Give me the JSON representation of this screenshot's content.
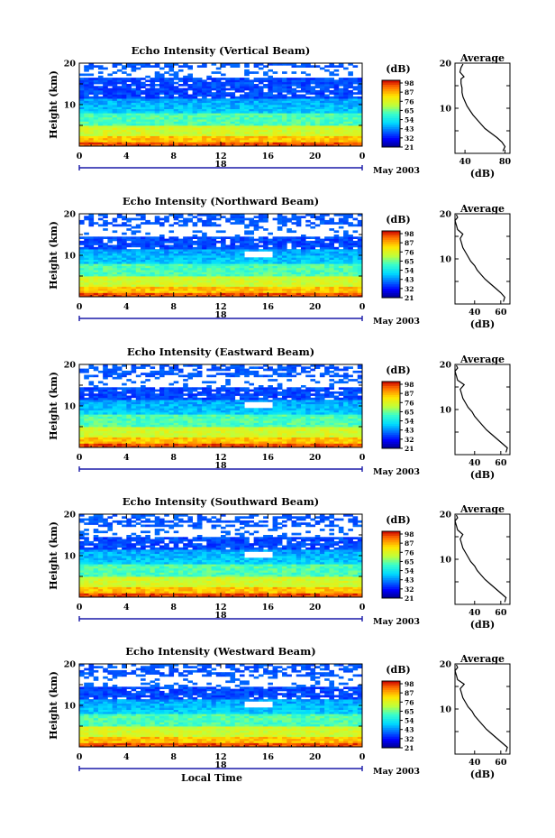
{
  "chart_data": [
    {
      "type": "heatmap",
      "title": "Echo Intensity (Vertical Beam)",
      "ylabel": "Height (km)",
      "ylim": [
        0,
        20
      ],
      "xlim": [
        0,
        24
      ],
      "x_ticks": [
        "0",
        "4",
        "8",
        "12",
        "16",
        "20",
        "0"
      ],
      "date_mark": "18",
      "date_label": "May 2003",
      "colorbar": {
        "title": "(dB)",
        "ticks": [
          "98",
          "87",
          "76",
          "65",
          "54",
          "43",
          "32",
          "21"
        ]
      },
      "profile": {
        "title": "Average",
        "xlabel": "(dB)",
        "x_ticks": [
          "40",
          "80"
        ],
        "y_ticks": [
          "10",
          "20"
        ],
        "x": [
          78,
          80,
          77,
          72,
          66,
          60,
          56,
          52,
          48,
          45,
          42,
          40,
          38,
          37,
          37,
          36,
          36,
          39,
          35,
          36,
          38
        ],
        "y": [
          0.5,
          1.5,
          2.5,
          3.5,
          4.5,
          5.5,
          6.5,
          7.5,
          8.5,
          9.5,
          10.5,
          11.5,
          12.5,
          13.5,
          14.5,
          15.5,
          16.5,
          17.0,
          18.0,
          19.0,
          19.8
        ]
      }
    },
    {
      "type": "heatmap",
      "title": "Echo Intensity (Northward Beam)",
      "ylabel": "Height (km)",
      "ylim": [
        0,
        20
      ],
      "xlim": [
        0,
        24
      ],
      "x_ticks": [
        "0",
        "4",
        "8",
        "12",
        "16",
        "20",
        "0"
      ],
      "date_mark": "18",
      "date_label": "May 2003",
      "colorbar": {
        "title": "(dB)",
        "ticks": [
          "98",
          "87",
          "76",
          "65",
          "54",
          "43",
          "32",
          "21"
        ]
      },
      "profile": {
        "title": "Average",
        "xlabel": "(dB)",
        "x_ticks": [
          "40",
          "60"
        ],
        "y_ticks": [
          "10",
          "20"
        ],
        "x": [
          62,
          63,
          60,
          56,
          52,
          48,
          45,
          42,
          40,
          37,
          35,
          33,
          31,
          30,
          29,
          31,
          27,
          26,
          25,
          27,
          26
        ],
        "y": [
          0.5,
          1.5,
          2.5,
          3.5,
          4.5,
          5.5,
          6.5,
          7.5,
          8.5,
          9.5,
          10.5,
          11.5,
          12.5,
          13.5,
          14.5,
          15.5,
          16.5,
          17.5,
          18.5,
          19.2,
          19.8
        ]
      }
    },
    {
      "type": "heatmap",
      "title": "Echo Intensity (Eastward Beam)",
      "ylabel": "Height (km)",
      "ylim": [
        0,
        20
      ],
      "xlim": [
        0,
        24
      ],
      "x_ticks": [
        "0",
        "4",
        "8",
        "12",
        "16",
        "20",
        "0"
      ],
      "date_mark": "18",
      "date_label": "May 2003",
      "colorbar": {
        "title": "(dB)",
        "ticks": [
          "98",
          "87",
          "76",
          "65",
          "54",
          "43",
          "32",
          "21"
        ]
      },
      "profile": {
        "title": "Average",
        "xlabel": "(dB)",
        "x_ticks": [
          "40",
          "60"
        ],
        "y_ticks": [
          "10",
          "20"
        ],
        "x": [
          64,
          65,
          61,
          57,
          53,
          49,
          46,
          43,
          40,
          38,
          35,
          33,
          31,
          30,
          29,
          32,
          27,
          26,
          25,
          27,
          26
        ],
        "y": [
          0.5,
          1.5,
          2.5,
          3.5,
          4.5,
          5.5,
          6.5,
          7.5,
          8.5,
          9.5,
          10.5,
          11.5,
          12.5,
          13.5,
          14.5,
          15.5,
          16.5,
          17.5,
          18.5,
          19.2,
          19.8
        ]
      }
    },
    {
      "type": "heatmap",
      "title": "Echo Intensity (Southward Beam)",
      "ylabel": "Height (km)",
      "ylim": [
        0,
        20
      ],
      "xlim": [
        0,
        24
      ],
      "x_ticks": [
        "0",
        "4",
        "8",
        "12",
        "16",
        "20",
        "0"
      ],
      "date_mark": "18",
      "date_label": "May 2003",
      "colorbar": {
        "title": "(dB)",
        "ticks": [
          "98",
          "87",
          "76",
          "65",
          "54",
          "43",
          "32",
          "21"
        ]
      },
      "profile": {
        "title": "Average",
        "xlabel": "(dB)",
        "x_ticks": [
          "40",
          "60"
        ],
        "y_ticks": [
          "10",
          "20"
        ],
        "x": [
          63,
          64,
          60,
          56,
          52,
          48,
          45,
          42,
          40,
          37,
          35,
          33,
          31,
          30,
          29,
          31,
          27,
          26,
          25,
          27,
          26
        ],
        "y": [
          0.5,
          1.5,
          2.5,
          3.5,
          4.5,
          5.5,
          6.5,
          7.5,
          8.5,
          9.5,
          10.5,
          11.5,
          12.5,
          13.5,
          14.5,
          15.5,
          16.5,
          17.5,
          18.5,
          19.2,
          19.8
        ]
      }
    },
    {
      "type": "heatmap",
      "title": "Echo Intensity (Westward Beam)",
      "ylabel": "Height (km)",
      "xlabel": "Local Time",
      "ylim": [
        0,
        20
      ],
      "xlim": [
        0,
        24
      ],
      "x_ticks": [
        "0",
        "4",
        "8",
        "12",
        "16",
        "20",
        "0"
      ],
      "date_mark": "18",
      "date_label": "May 2003",
      "colorbar": {
        "title": "(dB)",
        "ticks": [
          "98",
          "87",
          "76",
          "65",
          "54",
          "43",
          "32",
          "21"
        ]
      },
      "profile": {
        "title": "Average",
        "xlabel": "(dB)",
        "x_ticks": [
          "40",
          "60"
        ],
        "y_ticks": [
          "10",
          "20"
        ],
        "x": [
          64,
          65,
          61,
          57,
          53,
          49,
          46,
          43,
          40,
          38,
          35,
          33,
          31,
          30,
          29,
          32,
          27,
          26,
          25,
          27,
          26
        ],
        "y": [
          0.5,
          1.5,
          2.5,
          3.5,
          4.5,
          5.5,
          6.5,
          7.5,
          8.5,
          9.5,
          10.5,
          11.5,
          12.5,
          13.5,
          14.5,
          15.5,
          16.5,
          17.5,
          18.5,
          19.2,
          19.8
        ]
      }
    }
  ]
}
